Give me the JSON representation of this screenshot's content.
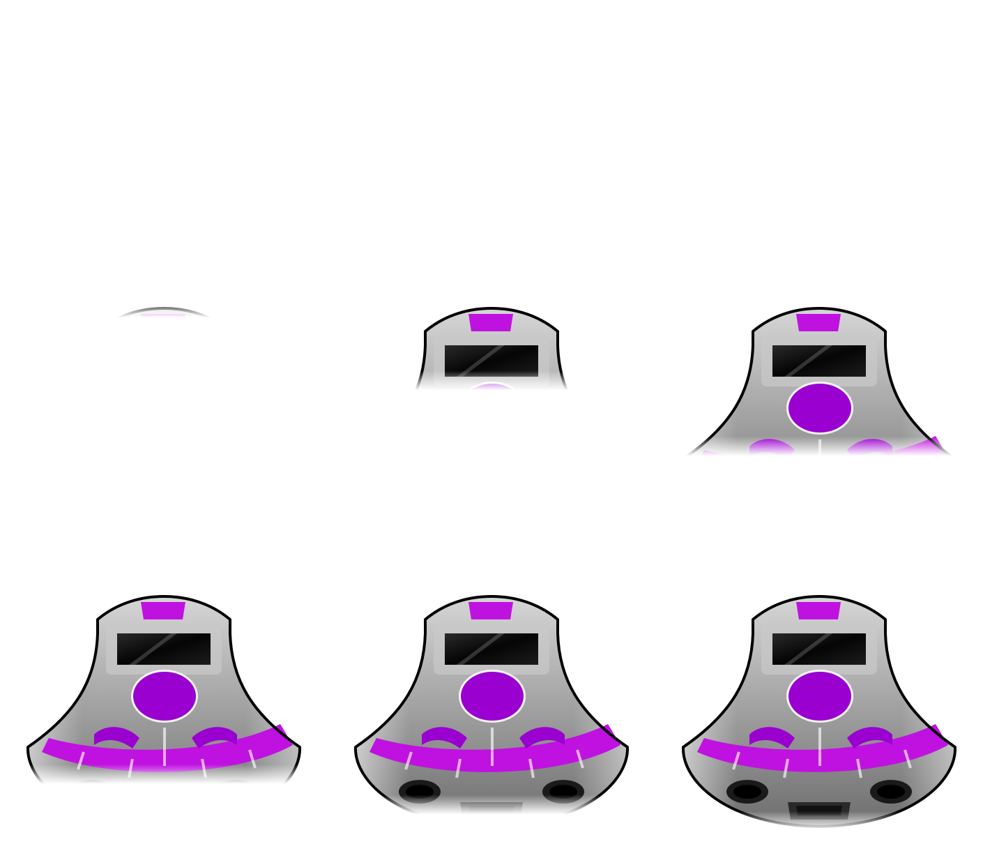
{
  "sprite_sheet": {
    "subject": "robot-pod-spaceship",
    "frame_count": 6,
    "frames": [
      {
        "index": 1,
        "reveal": 0.04
      },
      {
        "index": 2,
        "reveal": 0.35
      },
      {
        "index": 3,
        "reveal": 0.63
      },
      {
        "index": 4,
        "reveal": 0.8
      },
      {
        "index": 5,
        "reveal": 0.93
      },
      {
        "index": 6,
        "reveal": 1.0
      }
    ]
  },
  "colors": {
    "background": "#ffffff",
    "hull_light": "#d6d6d6",
    "hull_mid": "#9a9a9a",
    "hull_dark": "#6e6e6e",
    "outline": "#000000",
    "accent": "#bf12e0",
    "accent_dark": "#9a00cf",
    "visor": "#050505",
    "highlight": "#ffffff"
  }
}
